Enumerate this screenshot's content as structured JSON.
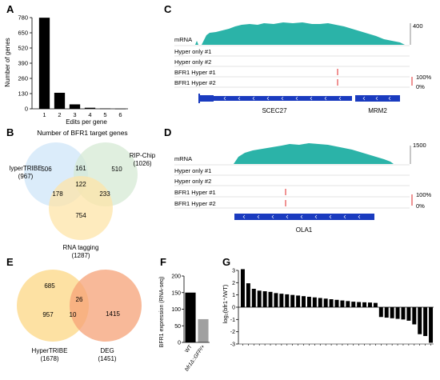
{
  "panels": {
    "A": {
      "letter": "A",
      "chart_data": {
        "type": "bar",
        "categories": [
          "1",
          "2",
          "3",
          "4",
          "5",
          "6"
        ],
        "values": [
          779,
          137,
          38,
          9,
          3,
          1
        ],
        "xlabel": "Edits per gene",
        "ylabel": "Number of genes",
        "ylim": [
          0,
          780
        ],
        "yticks": [
          "0",
          "130",
          "260",
          "390",
          "520",
          "650",
          "780"
        ]
      }
    },
    "B": {
      "letter": "B",
      "title": "Number of BFR1 target genes",
      "sets": [
        {
          "name": "lyperTRIBE",
          "total": "(967)",
          "color": "#cfe6f8"
        },
        {
          "name": "RIP-Chip",
          "total": "(1026)",
          "color": "#d6ead4"
        },
        {
          "name": "RNA tagging",
          "total": "(1287)",
          "color": "#fde4a8"
        }
      ],
      "counts": {
        "a_only": "506",
        "b_only": "510",
        "c_only": "754",
        "ab": "161",
        "ac": "178",
        "bc": "233",
        "abc": "122"
      }
    },
    "C": {
      "letter": "C",
      "track_labels": [
        "mRNA",
        "Hyper only #1",
        "Hyper only #2",
        "BFR1 Hyper #1",
        "BFR1 Hyper #2"
      ],
      "scale_max": "400",
      "pct_top": "100%",
      "pct_bottom": "0%",
      "genes": [
        "SCEC27",
        "MRM2"
      ]
    },
    "D": {
      "letter": "D",
      "track_labels": [
        "mRNA",
        "Hyper only #1",
        "Hyper only #2",
        "BFR1 Hyper #1",
        "BFR1 Hyper #2"
      ],
      "scale_max": "1500",
      "pct_top": "100%",
      "pct_bottom": "0%",
      "genes": [
        "OLA1"
      ]
    },
    "E": {
      "letter": "E",
      "sets": [
        {
          "name": "HyperTRIBE",
          "total": "(1678)",
          "color": "#fcd98c"
        },
        {
          "name": "DEG",
          "total": "(1451)",
          "color": "#f5a277"
        }
      ],
      "counts": {
        "top": "685",
        "left": "957",
        "mid_top": "26",
        "mid": "10",
        "right": "1415"
      }
    },
    "F": {
      "letter": "F",
      "chart_data": {
        "type": "bar",
        "categories": [
          "WT",
          "bfr1Δ::GFP/+"
        ],
        "values": [
          150,
          70
        ],
        "colors": [
          "#000000",
          "#a0a0a0"
        ],
        "ylabel": "BFR1 expression (RNA-seq)",
        "ylim": [
          0,
          200
        ],
        "yticks": [
          "0",
          "50",
          "100",
          "150",
          "200"
        ]
      }
    },
    "G": {
      "letter": "G",
      "chart_data": {
        "type": "bar",
        "values": [
          3.1,
          1.95,
          1.5,
          1.35,
          1.3,
          1.25,
          1.15,
          1.1,
          1.05,
          1.0,
          0.95,
          0.9,
          0.85,
          0.8,
          0.75,
          0.7,
          0.65,
          0.6,
          0.55,
          0.5,
          0.45,
          0.42,
          0.4,
          0.38,
          0.35,
          -0.8,
          -0.85,
          -0.9,
          -0.95,
          -1.0,
          -1.1,
          -1.4,
          -2.2,
          -2.35,
          -2.9
        ],
        "ylabel": "log₂(bfr1⁺/WT)",
        "ylim": [
          -3,
          3
        ],
        "yticks": [
          "-3",
          "-2",
          "-1",
          "0",
          "1",
          "2",
          "3"
        ]
      }
    }
  }
}
